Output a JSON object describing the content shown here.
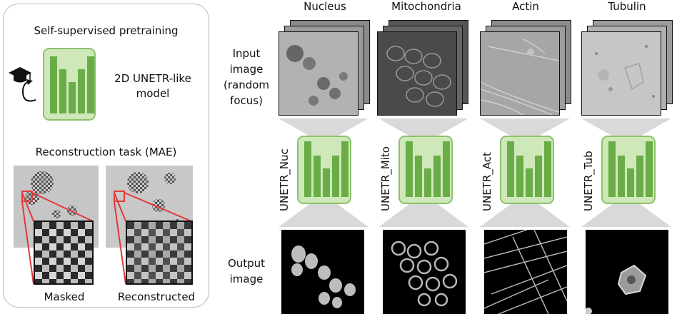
{
  "pretraining": {
    "title": "Self-supervised pretraining",
    "model_label_line1": "2D UNETR-like",
    "model_label_line2": "model",
    "reconstruction_title": "Reconstruction task (MAE)",
    "masked_label": "Masked",
    "reconstructed_label": "Reconstructed"
  },
  "row_labels": {
    "input_line1": "Input",
    "input_line2": "image",
    "input_line3": "(random",
    "input_line4": "focus)",
    "output_line1": "Output",
    "output_line2": "image"
  },
  "columns": [
    {
      "name": "Nucleus",
      "model": "UNETR_Nuc"
    },
    {
      "name": "Mitochondria",
      "model": "UNETR_Mito"
    },
    {
      "name": "Actin",
      "model": "UNETR_Act"
    },
    {
      "name": "Tubulin",
      "model": "UNETR_Tub"
    }
  ],
  "colors": {
    "model_fill": "#cfe8ba",
    "model_border": "#8cc16a",
    "bar_fill": "#6aad47",
    "zoom_lines": "#e03a3a",
    "funnel": "#d9d9d9"
  }
}
